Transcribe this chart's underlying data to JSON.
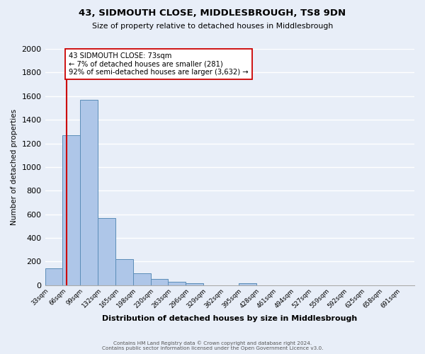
{
  "title": "43, SIDMOUTH CLOSE, MIDDLESBROUGH, TS8 9DN",
  "subtitle": "Size of property relative to detached houses in Middlesbrough",
  "xlabel": "Distribution of detached houses by size in Middlesbrough",
  "ylabel": "Number of detached properties",
  "footer_line1": "Contains HM Land Registry data © Crown copyright and database right 2024.",
  "footer_line2": "Contains public sector information licensed under the Open Government Licence v3.0.",
  "bin_labels": [
    "33sqm",
    "66sqm",
    "99sqm",
    "132sqm",
    "165sqm",
    "198sqm",
    "230sqm",
    "263sqm",
    "296sqm",
    "329sqm",
    "362sqm",
    "395sqm",
    "428sqm",
    "461sqm",
    "494sqm",
    "527sqm",
    "559sqm",
    "592sqm",
    "625sqm",
    "658sqm",
    "691sqm"
  ],
  "bar_values": [
    140,
    1270,
    1570,
    570,
    220,
    100,
    55,
    28,
    18,
    0,
    0,
    15,
    0,
    0,
    0,
    0,
    0,
    0,
    0,
    0,
    0
  ],
  "bar_color": "#aec6e8",
  "bar_edge_color": "#5b8db8",
  "property_line_x": 73,
  "property_line_color": "#cc0000",
  "annotation_text": "43 SIDMOUTH CLOSE: 73sqm\n← 7% of detached houses are smaller (281)\n92% of semi-detached houses are larger (3,632) →",
  "annotation_box_color": "#ffffff",
  "annotation_box_edge_color": "#cc0000",
  "ylim": [
    0,
    2000
  ],
  "yticks": [
    0,
    200,
    400,
    600,
    800,
    1000,
    1200,
    1400,
    1600,
    1800,
    2000
  ],
  "bg_color": "#e8eef8",
  "grid_color": "#ffffff"
}
